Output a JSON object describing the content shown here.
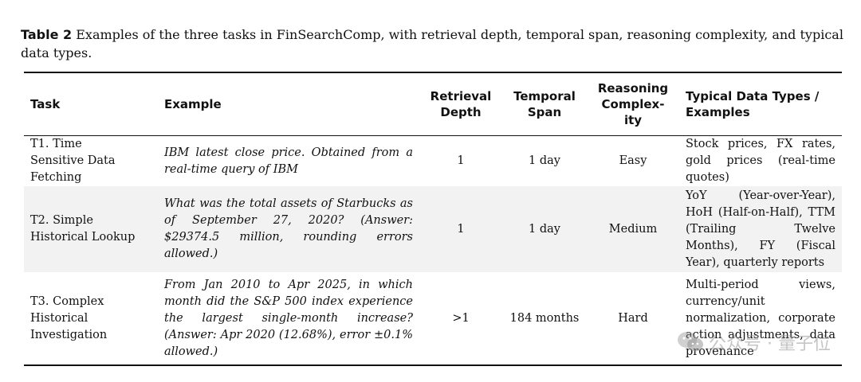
{
  "caption": {
    "label": "Table 2",
    "text": "Examples of the three tasks in FinSearchComp, with retrieval depth, temporal span, reasoning complexity, and typical data types."
  },
  "table": {
    "headers": [
      "Task",
      "Example",
      "Retrieval\nDepth",
      "Temporal\nSpan",
      "Reasoning\nComplex-\nity",
      "Typical Data Types /\nExamples"
    ],
    "rows": [
      {
        "task": "T1. Time\nSensitive Data\nFetching",
        "example": "IBM latest close price. Obtained from a real-time query of IBM",
        "depth": "1",
        "span": "1 day",
        "complexity": "Easy",
        "types": "Stock prices, FX rates, gold prices (real-time quotes)"
      },
      {
        "task": "T2. Simple\nHistorical Lookup",
        "example": "What was the total assets of Starbucks as of September 27, 2020? (Answer: $29374.5 million, rounding errors allowed.)",
        "depth": "1",
        "span": "1 day",
        "complexity": "Medium",
        "types": "YoY (Year-over-Year), HoH (Half-on-Half), TTM (Trailing Twelve Months), FY (Fiscal Year), quarterly reports"
      },
      {
        "task": "T3. Complex\nHistorical\nInvestigation",
        "example": "From Jan 2010 to Apr 2025, in which month did the S&P 500 index experience the largest single-month increase? (Answer: Apr 2020 (12.68%), error ±0.1% allowed.)",
        "depth": ">1",
        "span": "184 months",
        "complexity": "Hard",
        "types": "Multi-period views, currency/unit normalization, corporate action adjustments, data provenance"
      }
    ]
  },
  "watermark": {
    "text": "公众号 · 量子位",
    "icon": "wechat-icon"
  }
}
